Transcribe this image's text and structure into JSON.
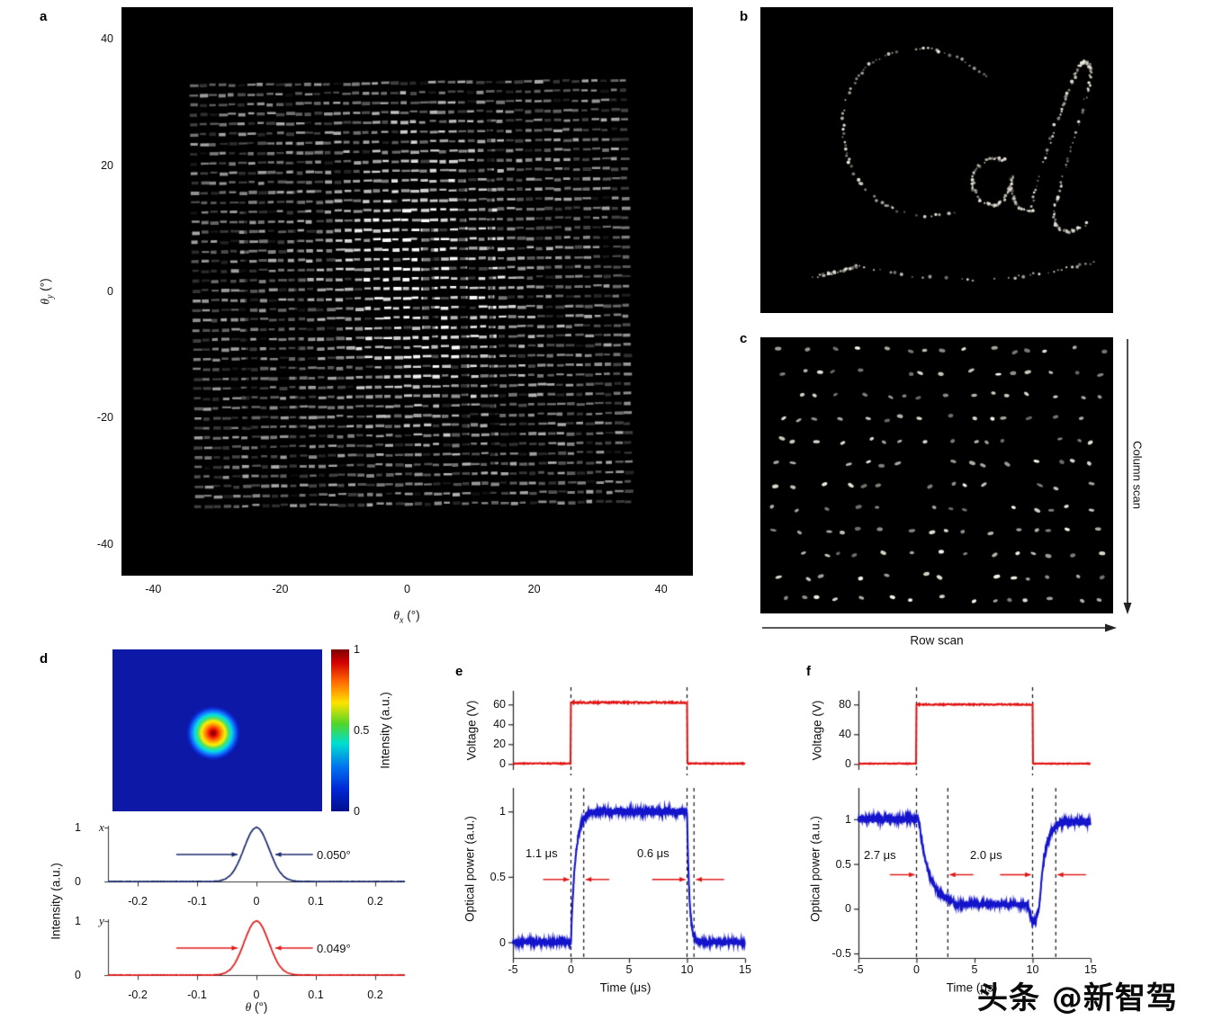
{
  "figure": {
    "panel_labels": {
      "a": "a",
      "b": "b",
      "c": "c",
      "d": "d",
      "e": "e",
      "f": "f"
    },
    "watermark": "头条 @新智驾"
  },
  "axis_labels": {
    "theta_x": {
      "sym": "θ",
      "sub": "x",
      "unit": " (°)"
    },
    "theta_y": {
      "sym": "θ",
      "sub": "y",
      "unit": " (°)"
    },
    "theta": {
      "sym": "θ",
      "unit": " (°)"
    },
    "intensity": "Intensity (a.u.)",
    "voltage": "Voltage (V)",
    "optical_power": "Optical power (a.u.)",
    "time": "Time (μs)"
  },
  "panel_c": {
    "row_scan": "Row scan",
    "column_scan": "Column scan"
  },
  "panel_d": {
    "x_label": "x",
    "y_label": "y",
    "x_fwhm": "0.050°",
    "y_fwhm": "0.049°"
  },
  "panel_e": {
    "rise_time": "1.1 μs",
    "fall_time": "0.6 μs"
  },
  "panel_f": {
    "fall_time": "2.7 μs",
    "rise_time": "2.0 μs"
  },
  "chart_data": [
    {
      "id": "a",
      "type": "heatmap",
      "xlabel": "θx (°)",
      "ylabel": "θy (°)",
      "xlim": [
        -45,
        45
      ],
      "ylim": [
        -45,
        45
      ],
      "xticks": [
        -40,
        -20,
        0,
        20,
        40
      ],
      "yticks": [
        40,
        20,
        0,
        -20,
        -40
      ],
      "description": "Far-field camera image: dense square grid (~45×45) of white beam spots on black spanning about ±32°, brightest near the centre, with a few dark vertical streaks"
    },
    {
      "id": "b",
      "type": "image",
      "description": "Handwritten word 'Cal' traced as dotted white beam spots on black background"
    },
    {
      "id": "c",
      "type": "image",
      "row_label": "Row scan",
      "column_label": "Column scan",
      "description": "About 16 wavy columns × 12 rows of small white beam spots on black, raster-scanned"
    },
    {
      "id": "d-spot",
      "type": "heatmap",
      "description": "Single focused beam spot, Gaussian profile, jet colormap (red core, yellow/green/cyan rings) on dark blue background",
      "colorbar_ticks": [
        1,
        0.5,
        0
      ],
      "colorbar_label": "Intensity (a.u.)"
    },
    {
      "id": "d-x",
      "type": "line",
      "series": "x",
      "color_hex": "#1a2a6c",
      "fwhm_deg": 0.05,
      "fwhm_label": "0.050°",
      "xlim": [
        -0.25,
        0.25
      ],
      "xticks": [
        -0.2,
        -0.1,
        0,
        0.1,
        0.2
      ],
      "yticks": [
        1,
        0
      ],
      "xlabel": "θ (°)",
      "ylabel": "Intensity (a.u.)",
      "curve": "Gaussian centred at 0, peak 1, FWHM 0.050°"
    },
    {
      "id": "d-y",
      "type": "line",
      "series": "y",
      "color_hex": "#e01818",
      "fwhm_deg": 0.049,
      "fwhm_label": "0.049°",
      "xlim": [
        -0.25,
        0.25
      ],
      "xticks": [
        -0.2,
        -0.1,
        0,
        0.1,
        0.2
      ],
      "yticks": [
        1,
        0
      ],
      "xlabel": "θ (°)",
      "ylabel": "Intensity (a.u.)",
      "curve": "Gaussian centred at 0, peak 1, FWHM 0.049°"
    },
    {
      "id": "e-voltage",
      "type": "line",
      "color_hex": "#e21212",
      "ylabel": "Voltage (V)",
      "yticks": [
        60,
        40,
        20,
        0
      ],
      "xlim": [
        -5,
        15
      ],
      "pulse": {
        "t_on_us": 0,
        "t_off_us": 10,
        "amplitude_v": 62
      },
      "dashed_lines_us": [
        0,
        10
      ]
    },
    {
      "id": "e-optical",
      "type": "line",
      "color_hex": "#1414cc",
      "ylabel": "Optical power (a.u.)",
      "yticks": [
        1,
        0.5,
        0
      ],
      "ylim": [
        -0.12,
        1.18
      ],
      "xlim": [
        -5,
        15
      ],
      "xticks": [
        -5,
        0,
        5,
        10,
        15
      ],
      "xlabel": "Time (μs)",
      "rise_time_us": 1.1,
      "fall_time_us": 0.6,
      "dashed_lines_us": [
        0,
        1.1,
        10,
        10.6
      ],
      "trace": "0 before t=0, exponential rise to 1 (rise time 1.1 μs) while voltage on, drops back to 0 at t=10 (fall time 0.6 μs)"
    },
    {
      "id": "f-voltage",
      "type": "line",
      "color_hex": "#e21212",
      "ylabel": "Voltage (V)",
      "yticks": [
        80,
        40,
        0
      ],
      "xlim": [
        -5,
        15
      ],
      "pulse": {
        "t_on_us": 0,
        "t_off_us": 10,
        "amplitude_v": 80
      },
      "dashed_lines_us": [
        0,
        10
      ]
    },
    {
      "id": "f-optical",
      "type": "line",
      "color_hex": "#1414cc",
      "ylabel": "Optical power (a.u.)",
      "yticks": [
        1,
        0.5,
        0,
        -0.5
      ],
      "ylim": [
        -0.55,
        1.35
      ],
      "xlim": [
        -5,
        15
      ],
      "xticks": [
        -5,
        0,
        5,
        10,
        15
      ],
      "xlabel": "Time (μs)",
      "fall_time_us": 2.7,
      "rise_time_us": 2.0,
      "dashed_lines_us": [
        0,
        2.7,
        10,
        12
      ],
      "trace": "1 before t=0, falls to ~0 by t=2.7 μs after voltage on, small negative dip near t=10, recovers to 1 by t=12 μs after voltage off"
    }
  ]
}
